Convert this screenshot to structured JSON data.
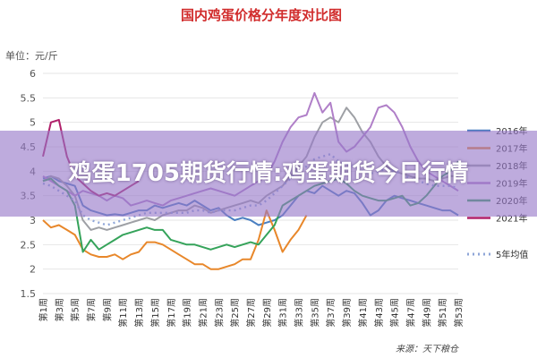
{
  "banner": {
    "headline": "鸡蛋1705期货行情:鸡蛋期货今日行情"
  },
  "chart_data": {
    "type": "line",
    "title": "国内鸡蛋价格分年度对比图",
    "unit_label": "单位：元/斤",
    "source": "来源：天下粮仓",
    "ylim": [
      1.5,
      6
    ],
    "y_ticks": [
      "1.5",
      "2",
      "2.5",
      "3",
      "3.5",
      "4",
      "4.5",
      "5",
      "5.5",
      "6"
    ],
    "x_ticks": [
      "第1周",
      "第3周",
      "第5周",
      "第7周",
      "第9周",
      "第11周",
      "第13周",
      "第15周",
      "第17周",
      "第19周",
      "第21周",
      "第23周",
      "第25周",
      "第27周",
      "第29周",
      "第31周",
      "第33周",
      "第35周",
      "第37周",
      "第39周",
      "第41周",
      "第43周",
      "第45周",
      "第47周",
      "第49周",
      "第51周",
      "第53周"
    ],
    "legend_position": "right",
    "grid": true,
    "series": [
      {
        "name": "2016年",
        "color": "#4a7fc1",
        "dash": false,
        "values": [
          3.85,
          3.9,
          3.8,
          3.75,
          3.7,
          3.3,
          3.2,
          3.15,
          3.1,
          3.12,
          3.1,
          3.15,
          3.2,
          3.2,
          3.3,
          3.25,
          3.3,
          3.35,
          3.3,
          3.4,
          3.3,
          3.2,
          3.25,
          3.1,
          3.0,
          3.05,
          3.0,
          2.9,
          2.95,
          3.0,
          3.1,
          3.3,
          3.5,
          3.6,
          3.55,
          3.7,
          3.6,
          3.5,
          3.6,
          3.55,
          3.35,
          3.1,
          3.2,
          3.4,
          3.5,
          3.45,
          3.4,
          3.35,
          3.3,
          3.25,
          3.2,
          3.2,
          3.1
        ]
      },
      {
        "name": "2017年",
        "color": "#e8872a",
        "dash": false,
        "values": [
          3.0,
          2.85,
          2.9,
          2.8,
          2.7,
          2.4,
          2.3,
          2.25,
          2.25,
          2.3,
          2.2,
          2.3,
          2.35,
          2.55,
          2.55,
          2.5,
          2.4,
          2.3,
          2.2,
          2.1,
          2.1,
          2.0,
          2.0,
          2.05,
          2.1,
          2.2,
          2.2,
          2.6,
          3.2,
          2.8,
          2.35,
          2.6,
          2.8,
          3.1
        ]
      },
      {
        "name": "2018年",
        "color": "#9ea0a5",
        "dash": false,
        "values": [
          3.8,
          3.9,
          3.85,
          3.7,
          3.5,
          3.0,
          2.8,
          2.85,
          2.8,
          2.85,
          2.9,
          2.95,
          3.0,
          3.05,
          3.0,
          3.1,
          3.15,
          3.2,
          3.2,
          3.3,
          3.25,
          3.15,
          3.2,
          3.25,
          3.3,
          3.35,
          3.4,
          3.35,
          3.5,
          3.6,
          3.7,
          3.9,
          4.1,
          4.3,
          4.7,
          5.0,
          5.1,
          5.0,
          5.3,
          5.1,
          4.8,
          4.6,
          4.3,
          4.1,
          4.0,
          3.95,
          3.9,
          3.85,
          3.85,
          3.8,
          3.85,
          3.9,
          3.9
        ]
      },
      {
        "name": "2019年",
        "color": "#b07fc8",
        "dash": false,
        "values": [
          3.9,
          3.8,
          3.7,
          3.6,
          3.5,
          3.6,
          3.55,
          3.5,
          3.4,
          3.5,
          3.45,
          3.3,
          3.35,
          3.4,
          3.35,
          3.3,
          3.4,
          3.45,
          3.5,
          3.55,
          3.6,
          3.65,
          3.6,
          3.55,
          3.5,
          3.6,
          3.7,
          3.8,
          3.9,
          4.2,
          4.6,
          4.9,
          5.1,
          5.15,
          5.6,
          5.2,
          5.4,
          4.6,
          4.4,
          4.5,
          4.7,
          4.9,
          5.3,
          5.35,
          5.2,
          4.9,
          4.5,
          4.2,
          4.0,
          3.9,
          3.8,
          3.7,
          3.6
        ]
      },
      {
        "name": "2020年",
        "color": "#35a35a",
        "dash": false,
        "values": [
          3.8,
          3.85,
          3.7,
          3.6,
          3.3,
          2.35,
          2.6,
          2.4,
          2.5,
          2.6,
          2.7,
          2.75,
          2.8,
          2.85,
          2.8,
          2.8,
          2.6,
          2.55,
          2.5,
          2.5,
          2.45,
          2.4,
          2.45,
          2.5,
          2.45,
          2.5,
          2.55,
          2.5,
          2.7,
          2.9,
          3.3,
          3.4,
          3.5,
          3.6,
          3.7,
          3.75,
          3.8,
          3.85,
          3.75,
          3.6,
          3.5,
          3.45,
          3.4,
          3.4,
          3.45,
          3.5,
          3.3,
          3.35,
          3.5,
          3.7,
          3.9,
          4.0,
          4.2
        ]
      },
      {
        "name": "2021年",
        "color": "#b0206a",
        "dash": false,
        "values": [
          4.3,
          5.0,
          5.05,
          4.3,
          3.9,
          3.75,
          3.6,
          3.5,
          3.55,
          3.5,
          3.6,
          3.7,
          3.8
        ]
      },
      {
        "name": "5年均值",
        "color": "#8fa6d8",
        "dash": true,
        "values": [
          3.75,
          3.7,
          3.6,
          3.5,
          3.4,
          3.1,
          3.0,
          2.95,
          2.9,
          2.95,
          3.0,
          3.05,
          3.1,
          3.15,
          3.15,
          3.15,
          3.15,
          3.15,
          3.15,
          3.2,
          3.2,
          3.15,
          3.2,
          3.2,
          3.2,
          3.25,
          3.3,
          3.3,
          3.4,
          3.55,
          3.7,
          3.85,
          4.0,
          4.1,
          4.25,
          4.3,
          4.35,
          4.2,
          4.15,
          4.1,
          4.0,
          3.95,
          4.0,
          4.05,
          4.0,
          3.95,
          3.85,
          3.8,
          3.75,
          3.7,
          3.7,
          3.7,
          3.65
        ]
      }
    ]
  }
}
